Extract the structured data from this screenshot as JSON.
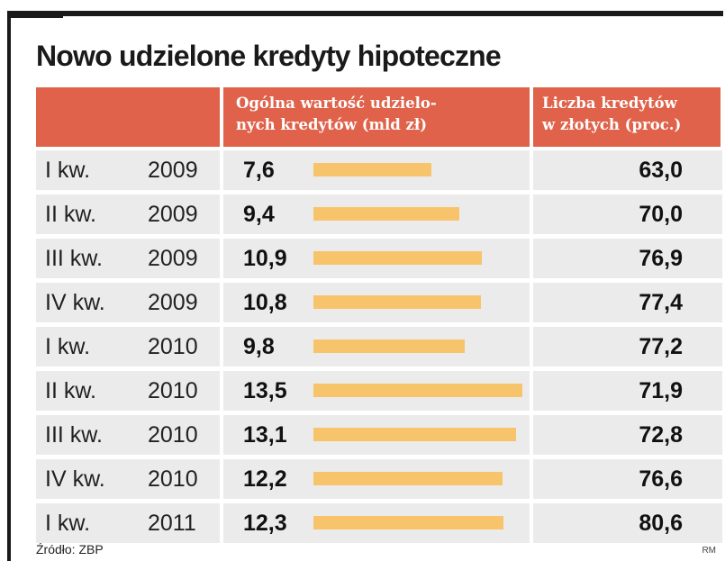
{
  "title": "Nowo udzielone kredyty hipoteczne",
  "headers": {
    "period": "",
    "value_line1": "Ogólna wartość udzielo-",
    "value_line2": "nych kredytów (mld zł)",
    "count_line1": "Liczba kredytów",
    "count_line2": "w złotych (proc.)"
  },
  "colors": {
    "header_bg": "#e0624a",
    "bar": "#f7c46c",
    "row_bg": "#ebebeb"
  },
  "source": "Źródło: ZBP",
  "author": "RM",
  "chart_data": {
    "type": "table",
    "title": "Nowo udzielone kredyty hipoteczne",
    "columns": [
      "",
      "",
      "Ogólna wartość udzielonych kredytów (mld zł)",
      "Liczba kredytów w złotych (proc.)"
    ],
    "bar_max": 13.5,
    "rows": [
      {
        "quarter": "I kw.",
        "year": "2009",
        "value": "7,6",
        "value_num": 7.6,
        "share": "63,0"
      },
      {
        "quarter": "II kw.",
        "year": "2009",
        "value": "9,4",
        "value_num": 9.4,
        "share": "70,0"
      },
      {
        "quarter": "III kw.",
        "year": "2009",
        "value": "10,9",
        "value_num": 10.9,
        "share": "76,9"
      },
      {
        "quarter": "IV kw.",
        "year": "2009",
        "value": "10,8",
        "value_num": 10.8,
        "share": "77,4"
      },
      {
        "quarter": "I kw.",
        "year": "2010",
        "value": "9,8",
        "value_num": 9.8,
        "share": "77,2"
      },
      {
        "quarter": "II kw.",
        "year": "2010",
        "value": "13,5",
        "value_num": 13.5,
        "share": "71,9"
      },
      {
        "quarter": "III kw.",
        "year": "2010",
        "value": "13,1",
        "value_num": 13.1,
        "share": "72,8"
      },
      {
        "quarter": "IV kw.",
        "year": "2010",
        "value": "12,2",
        "value_num": 12.2,
        "share": "76,6"
      },
      {
        "quarter": "I kw.",
        "year": "2011",
        "value": "12,3",
        "value_num": 12.3,
        "share": "80,6"
      }
    ]
  }
}
